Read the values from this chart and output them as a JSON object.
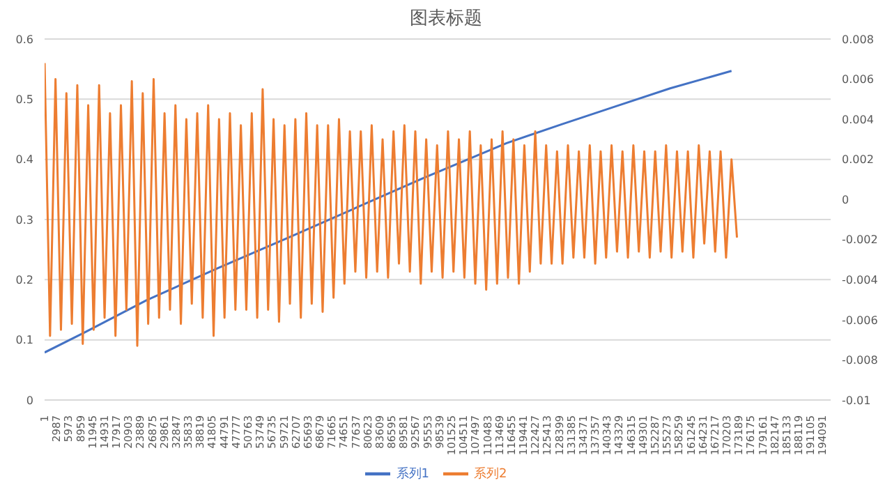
{
  "chart_data": {
    "type": "line",
    "title": "图表标题",
    "legend": "bottom",
    "grid": "y",
    "marker": "none",
    "line_style": "solid",
    "xlim": [
      1,
      196100
    ],
    "xticks": [
      1,
      2987,
      5973,
      8959,
      11945,
      14931,
      17917,
      20903,
      23889,
      26875,
      29861,
      32847,
      35833,
      38819,
      41805,
      44791,
      47777,
      50763,
      53749,
      56735,
      59721,
      62707,
      65693,
      68679,
      71665,
      74651,
      77637,
      80623,
      83609,
      86595,
      89581,
      92567,
      95553,
      98539,
      101525,
      104511,
      107497,
      110483,
      113469,
      116455,
      119441,
      122427,
      125413,
      128399,
      131385,
      134371,
      137357,
      140343,
      143329,
      146315,
      149301,
      152287,
      155273,
      158259,
      161245,
      164231,
      167217,
      170203,
      173189,
      176175,
      179161,
      182147,
      185133,
      188119,
      191105,
      194091
    ],
    "ylim": [
      0,
      0.6
    ],
    "yticks": [
      0,
      0.1,
      0.2,
      0.3,
      0.4,
      0.5,
      0.6
    ],
    "y2lim": [
      -0.01,
      0.008
    ],
    "y2ticks": [
      -0.01,
      -0.008,
      -0.006,
      -0.004,
      -0.002,
      0,
      0.002,
      0.004,
      0.006,
      0.008
    ],
    "series": [
      {
        "name": "系列1",
        "color": "#4472c4",
        "x": [
          1,
          9861,
          25501,
          43181,
          60861,
          77861,
          94861,
          115261,
          128861,
          142461,
          156061,
          171361
        ],
        "values": [
          0.079,
          0.112,
          0.166,
          0.219,
          0.27,
          0.32,
          0.37,
          0.427,
          0.458,
          0.488,
          0.518,
          0.547
        ]
      },
      {
        "name": "系列2",
        "color": "#ed7d31",
        "axis": "y2",
        "x": [
          1,
          1361,
          2721,
          4081,
          5441,
          6801,
          8161,
          9521,
          10881,
          12241,
          13601,
          14961,
          16321,
          17681,
          19041,
          20401,
          21761,
          23121,
          24481,
          25841,
          27201,
          28561,
          29921,
          31281,
          32641,
          34001,
          35361,
          36721,
          38081,
          39441,
          40801,
          42161,
          43521,
          44881,
          46241,
          47601,
          48961,
          50321,
          51681,
          53041,
          54401,
          55761,
          57121,
          58481,
          59841,
          61201,
          62561,
          63921,
          65281,
          66641,
          68001,
          69361,
          70721,
          72081,
          73441,
          74801,
          76161,
          77521,
          78881,
          80241,
          81601,
          82961,
          84321,
          85681,
          87041,
          88401,
          89761,
          91121,
          92481,
          93841,
          95201,
          96561,
          97921,
          99281,
          100641,
          102001,
          103361,
          104721,
          106081,
          107441,
          108801,
          110161,
          111521,
          112881,
          114241,
          115601,
          116961,
          118321,
          119681,
          121041,
          122401,
          123761,
          125121,
          126481,
          127841,
          129201,
          130561,
          131921,
          133281,
          134641,
          136001,
          137361,
          138721,
          140081,
          141441,
          142801,
          144161,
          145521,
          146881,
          148241,
          149601,
          150961,
          152321,
          153681,
          155041,
          156401,
          157761,
          159121,
          160481,
          161841,
          163201,
          164561,
          165921,
          167281,
          168641,
          170001,
          171361,
          172721
        ],
        "values": [
          0.0068,
          -0.0068,
          0.006,
          -0.0065,
          0.0053,
          -0.0062,
          0.0057,
          -0.0072,
          0.0047,
          -0.0065,
          0.0057,
          -0.0059,
          0.0043,
          -0.0068,
          0.0047,
          -0.0055,
          0.0059,
          -0.0073,
          0.0053,
          -0.0062,
          0.006,
          -0.0059,
          0.0043,
          -0.0055,
          0.0047,
          -0.0062,
          0.004,
          -0.0052,
          0.0043,
          -0.0059,
          0.0047,
          -0.0068,
          0.004,
          -0.0059,
          0.0043,
          -0.0055,
          0.0037,
          -0.0055,
          0.0043,
          -0.0059,
          0.0055,
          -0.0055,
          0.004,
          -0.0061,
          0.0037,
          -0.0052,
          0.004,
          -0.0059,
          0.0043,
          -0.0052,
          0.0037,
          -0.0056,
          0.0037,
          -0.0049,
          0.004,
          -0.0042,
          0.0034,
          -0.0036,
          0.0034,
          -0.0039,
          0.0037,
          -0.0036,
          0.003,
          -0.0039,
          0.0034,
          -0.0032,
          0.0037,
          -0.0036,
          0.0034,
          -0.0042,
          0.003,
          -0.0036,
          0.0027,
          -0.0039,
          0.0034,
          -0.0036,
          0.003,
          -0.0039,
          0.0034,
          -0.0042,
          0.0027,
          -0.0045,
          0.003,
          -0.0042,
          0.0034,
          -0.0039,
          0.003,
          -0.0042,
          0.0027,
          -0.0036,
          0.0034,
          -0.0032,
          0.0027,
          -0.0032,
          0.0024,
          -0.0032,
          0.0027,
          -0.0029,
          0.0024,
          -0.0029,
          0.0027,
          -0.0032,
          0.0024,
          -0.0029,
          0.0027,
          -0.0026,
          0.0024,
          -0.0029,
          0.0027,
          -0.0026,
          0.0024,
          -0.0029,
          0.0024,
          -0.0026,
          0.0027,
          -0.0029,
          0.0024,
          -0.0026,
          0.0024,
          -0.0029,
          0.0027,
          -0.0022,
          0.0024,
          -0.0026,
          0.0024,
          -0.0029,
          0.002,
          -0.0019
        ]
      }
    ]
  }
}
